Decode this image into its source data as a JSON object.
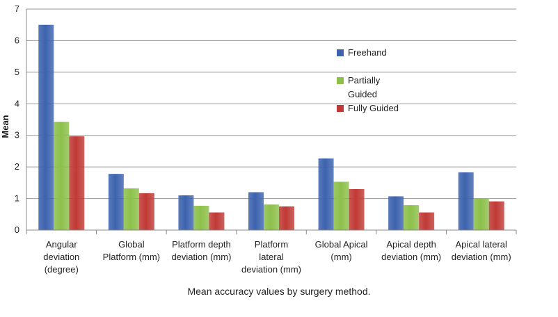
{
  "chart_data": {
    "type": "bar",
    "ylabel": "Mean",
    "ylim": [
      0,
      7
    ],
    "yticks": [
      0,
      1,
      2,
      3,
      4,
      5,
      6,
      7
    ],
    "grid": "horizontal",
    "legend_position": "right",
    "categories": [
      [
        "Angular",
        "deviation",
        "(degree)"
      ],
      [
        "Global",
        "Platform (mm)"
      ],
      [
        "Platform depth",
        "deviation (mm)"
      ],
      [
        "Platform",
        "lateral",
        "deviation (mm)"
      ],
      [
        "Global Apical",
        "(mm)"
      ],
      [
        "Apical depth",
        "deviation (mm)"
      ],
      [
        "Apical lateral",
        "deviation (mm)"
      ]
    ],
    "series": [
      {
        "name": "Freehand",
        "legend_lines": [
          "Freehand"
        ],
        "color": "#3D63AE",
        "values": [
          6.5,
          1.78,
          1.1,
          1.2,
          2.27,
          1.07,
          1.83
        ]
      },
      {
        "name": "Partially Guided",
        "legend_lines": [
          "Partially",
          "Guided"
        ],
        "color": "#8CC04A",
        "values": [
          3.43,
          1.32,
          0.77,
          0.81,
          1.53,
          0.79,
          1.01
        ]
      },
      {
        "name": "Fully Guided",
        "legend_lines": [
          "Fully Guided"
        ],
        "color": "#C03A35",
        "values": [
          2.97,
          1.17,
          0.56,
          0.75,
          1.3,
          0.56,
          0.91
        ]
      }
    ]
  },
  "caption": "Mean accuracy values by surgery method."
}
